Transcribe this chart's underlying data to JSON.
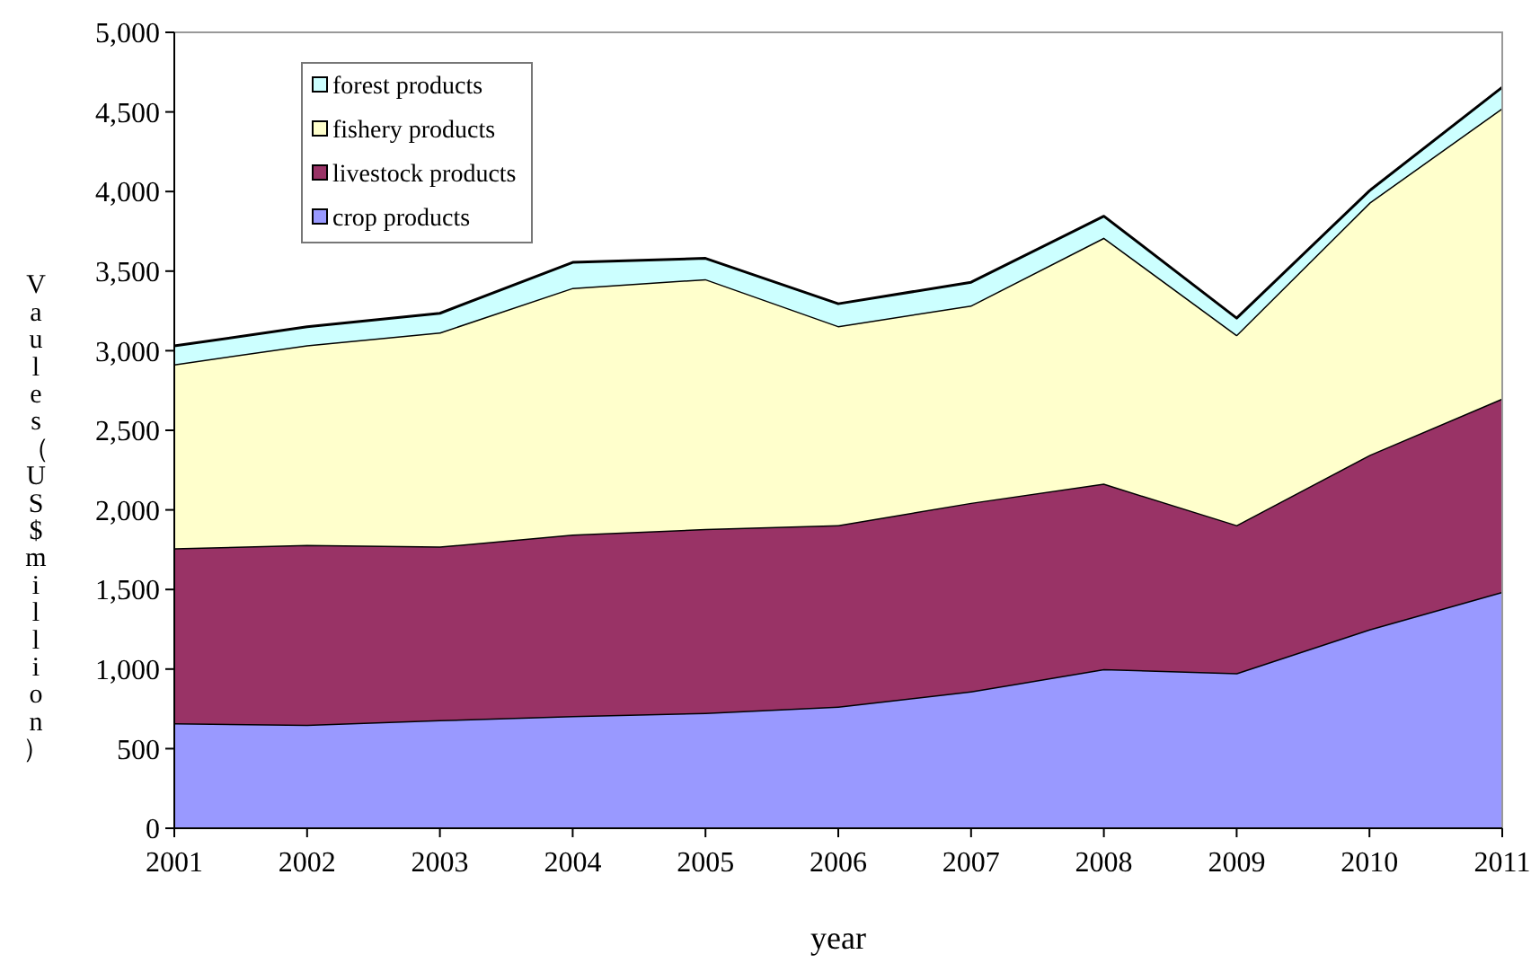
{
  "chart_data": {
    "type": "area",
    "stacked": true,
    "xlabel": "year",
    "ylabel": "Vaules（US$million）",
    "x": [
      2001,
      2002,
      2003,
      2004,
      2005,
      2006,
      2007,
      2008,
      2009,
      2010,
      2011
    ],
    "xlim": [
      2001,
      2011
    ],
    "xticks": [
      2001,
      2002,
      2003,
      2004,
      2005,
      2006,
      2007,
      2008,
      2009,
      2010,
      2011
    ],
    "ylim": [
      0,
      5000
    ],
    "yticks": [
      {
        "value": 0,
        "label": "0"
      },
      {
        "value": 500,
        "label": "500"
      },
      {
        "value": 1000,
        "label": "1,000"
      },
      {
        "value": 1500,
        "label": "1,500"
      },
      {
        "value": 2000,
        "label": "2,000"
      },
      {
        "value": 2500,
        "label": "2,500"
      },
      {
        "value": 3000,
        "label": "3,000"
      },
      {
        "value": 3500,
        "label": "3,500"
      },
      {
        "value": 4000,
        "label": "4,000"
      },
      {
        "value": 4500,
        "label": "4,500"
      },
      {
        "value": 5000,
        "label": "5,000"
      }
    ],
    "legend": "top left",
    "series": [
      {
        "name": "crop products",
        "color": "#9999ff",
        "values": [
          660,
          650,
          680,
          705,
          725,
          765,
          860,
          1000,
          975,
          1250,
          1485
        ]
      },
      {
        "name": "livestock products",
        "color": "#993366",
        "values": [
          1100,
          1130,
          1090,
          1140,
          1155,
          1140,
          1185,
          1165,
          930,
          1095,
          1215
        ]
      },
      {
        "name": "fishery products",
        "color": "#ffffcc",
        "values": [
          1155,
          1255,
          1345,
          1550,
          1570,
          1250,
          1240,
          1545,
          1195,
          1585,
          1825
        ]
      },
      {
        "name": "forest products",
        "color": "#ccffff",
        "values": [
          115,
          115,
          120,
          160,
          130,
          140,
          145,
          135,
          105,
          75,
          130
        ]
      }
    ]
  }
}
